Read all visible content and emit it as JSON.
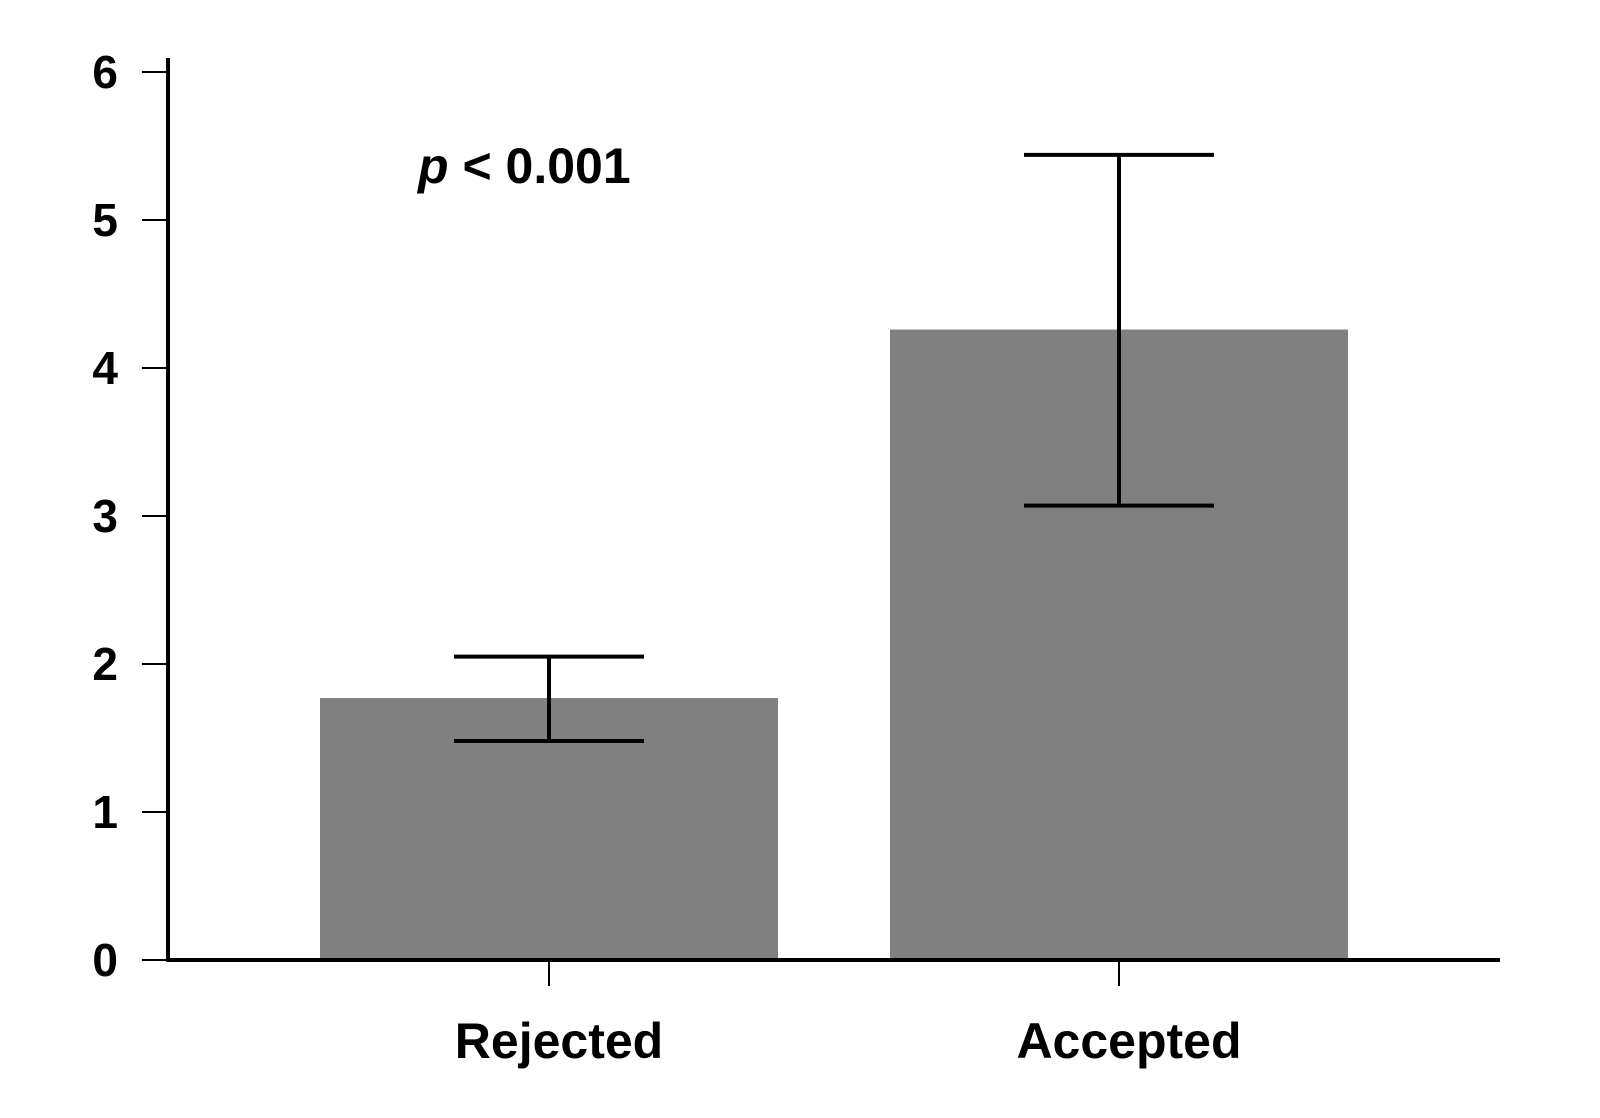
{
  "chart_data": {
    "type": "bar",
    "categories": [
      "Rejected",
      "Accepted"
    ],
    "values": [
      1.77,
      4.26
    ],
    "error_upper": [
      2.05,
      5.44
    ],
    "error_lower": [
      1.48,
      3.07
    ],
    "title": "",
    "xlabel": "",
    "ylabel": "",
    "ylim": [
      0,
      6
    ],
    "yticks": [
      "0",
      "1",
      "2",
      "3",
      "4",
      "5",
      "6"
    ],
    "grid": false,
    "bar_color": "#808080",
    "annotation": {
      "italic_part": "p",
      "rest": " < 0.001"
    }
  }
}
